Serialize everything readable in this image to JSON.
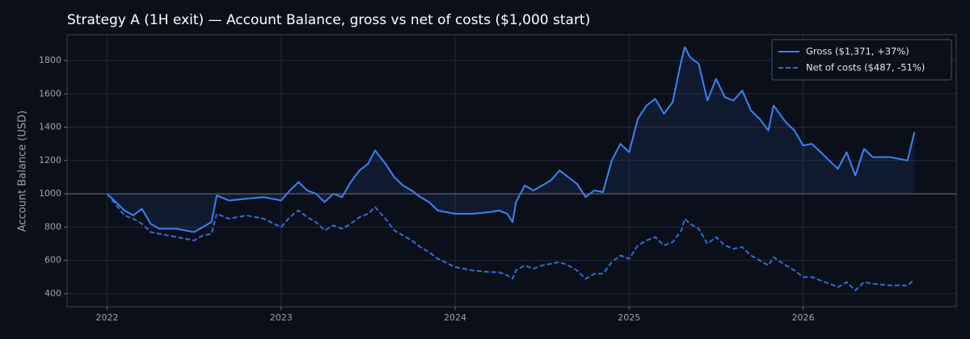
{
  "chart_data": {
    "type": "line",
    "title": "Strategy A (1H exit) — Account Balance, gross vs net of costs ($1,000 start)",
    "y_label": "Account Balance (USD)",
    "x": [
      2022.0,
      2022.1,
      2022.15,
      2022.2,
      2022.25,
      2022.3,
      2022.4,
      2022.5,
      2022.55,
      2022.6,
      2022.63,
      2022.7,
      2022.8,
      2022.9,
      2023.0,
      2023.05,
      2023.1,
      2023.15,
      2023.2,
      2023.25,
      2023.3,
      2023.35,
      2023.4,
      2023.45,
      2023.5,
      2023.54,
      2023.6,
      2023.65,
      2023.7,
      2023.75,
      2023.8,
      2023.85,
      2023.9,
      2024.0,
      2024.1,
      2024.2,
      2024.25,
      2024.3,
      2024.33,
      2024.35,
      2024.4,
      2024.45,
      2024.5,
      2024.55,
      2024.6,
      2024.65,
      2024.7,
      2024.75,
      2024.8,
      2024.85,
      2024.9,
      2024.95,
      2025.0,
      2025.05,
      2025.1,
      2025.15,
      2025.2,
      2025.25,
      2025.3,
      2025.32,
      2025.35,
      2025.4,
      2025.45,
      2025.5,
      2025.55,
      2025.6,
      2025.65,
      2025.7,
      2025.75,
      2025.8,
      2025.83,
      2025.9,
      2025.95,
      2026.0,
      2026.05,
      2026.1,
      2026.15,
      2026.2,
      2026.25,
      2026.3,
      2026.35,
      2026.4,
      2026.5,
      2026.6,
      2026.64
    ],
    "series": [
      {
        "name": "Gross ($1,371, +37%)",
        "color": "#3b82f6",
        "dash": false,
        "fill": true,
        "values": [
          1000,
          900,
          870,
          910,
          820,
          790,
          790,
          770,
          800,
          830,
          990,
          960,
          970,
          980,
          960,
          1020,
          1070,
          1020,
          1000,
          950,
          1000,
          980,
          1070,
          1140,
          1180,
          1260,
          1180,
          1100,
          1050,
          1020,
          980,
          950,
          900,
          880,
          880,
          890,
          900,
          880,
          830,
          950,
          1050,
          1020,
          1050,
          1080,
          1140,
          1100,
          1060,
          980,
          1020,
          1010,
          1200,
          1300,
          1250,
          1450,
          1530,
          1570,
          1480,
          1550,
          1800,
          1880,
          1820,
          1780,
          1560,
          1690,
          1580,
          1560,
          1620,
          1500,
          1450,
          1380,
          1530,
          1430,
          1380,
          1290,
          1300,
          1250,
          1200,
          1150,
          1250,
          1110,
          1270,
          1220,
          1220,
          1200,
          1371
        ]
      },
      {
        "name": "Net of costs ($487, -51%)",
        "color": "#2f6fd6",
        "dash": true,
        "fill": false,
        "values": [
          1000,
          870,
          850,
          820,
          770,
          760,
          740,
          720,
          750,
          760,
          880,
          850,
          870,
          850,
          800,
          860,
          900,
          860,
          830,
          780,
          810,
          790,
          820,
          860,
          880,
          920,
          850,
          780,
          750,
          720,
          680,
          650,
          610,
          560,
          540,
          530,
          530,
          510,
          490,
          540,
          570,
          550,
          570,
          580,
          590,
          570,
          540,
          490,
          520,
          520,
          590,
          630,
          610,
          690,
          720,
          740,
          690,
          710,
          780,
          850,
          820,
          790,
          700,
          740,
          690,
          670,
          680,
          630,
          600,
          570,
          620,
          570,
          540,
          500,
          500,
          480,
          460,
          440,
          470,
          420,
          470,
          460,
          450,
          450,
          487
        ]
      }
    ],
    "baseline": 1000,
    "xlim": [
      2021.77,
      2026.88
    ],
    "xticks": [
      2022,
      2023,
      2024,
      2025,
      2026
    ],
    "ylim": [
      322,
      1955
    ],
    "yticks": [
      400,
      600,
      800,
      1000,
      1200,
      1400,
      1600,
      1800
    ],
    "grid": true,
    "legend": "upper right"
  }
}
